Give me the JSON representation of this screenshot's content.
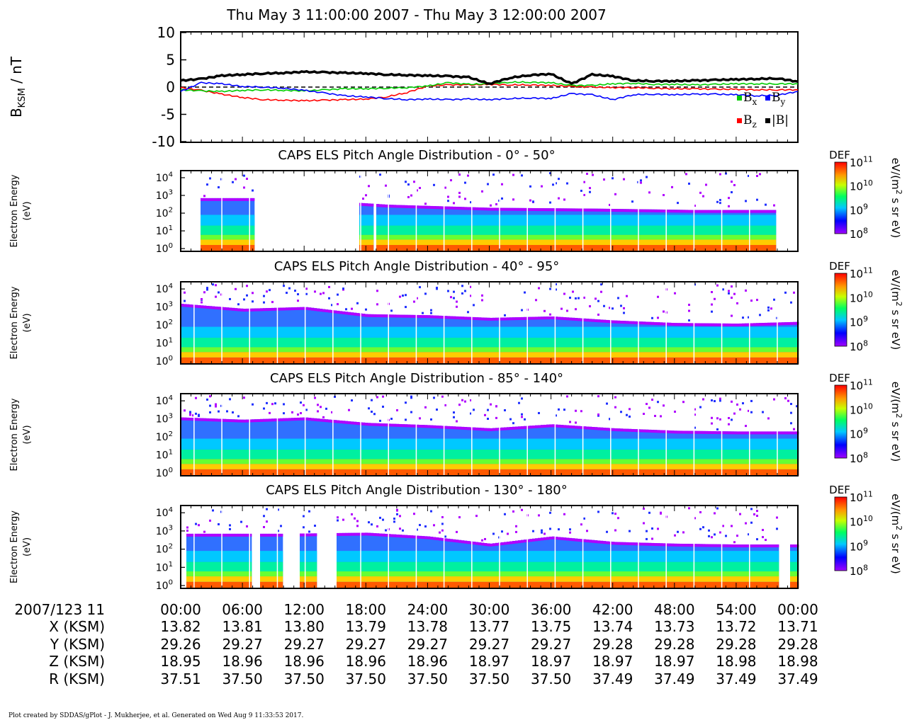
{
  "title": "Thu May 3 11:00:00 2007 - Thu May 3 12:00:00 2007",
  "mag_panel": {
    "ylabel_main": "B",
    "ylabel_sub": "KSM",
    "ylabel_unit": " / nT",
    "yticks": [
      "10",
      "5",
      "0",
      "-5",
      "-10"
    ],
    "legend": [
      {
        "key": "bx",
        "main": "B",
        "sub": "x",
        "color": "#00cc00"
      },
      {
        "key": "by",
        "main": "B",
        "sub": "y",
        "color": "#0000ff"
      },
      {
        "key": "bz",
        "main": "B",
        "sub": "z",
        "color": "#ff0000"
      },
      {
        "key": "bmag",
        "main": "|B|",
        "sub": "",
        "color": "#000000"
      }
    ]
  },
  "spectrograms": [
    {
      "title": "CAPS ELS Pitch Angle Distribution - 0° - 50°"
    },
    {
      "title": "CAPS ELS Pitch Angle Distribution - 40° - 95°"
    },
    {
      "title": "CAPS ELS Pitch Angle Distribution - 85° - 140°"
    },
    {
      "title": "CAPS ELS Pitch Angle Distribution - 130° - 180°"
    }
  ],
  "spectro_ylabel": [
    "Electron Energy",
    "(eV)"
  ],
  "spectro_yticks": [
    {
      "base": "10",
      "exp": "4"
    },
    {
      "base": "10",
      "exp": "3"
    },
    {
      "base": "10",
      "exp": "2"
    },
    {
      "base": "10",
      "exp": "1"
    },
    {
      "base": "10",
      "exp": "0"
    }
  ],
  "colorbar": {
    "label": "DEF",
    "ticks": [
      {
        "base": "10",
        "exp": "11"
      },
      {
        "base": "10",
        "exp": "10"
      },
      {
        "base": "10",
        "exp": "9"
      },
      {
        "base": "10",
        "exp": "8"
      }
    ],
    "unit_parts": [
      "eV/(m",
      "2",
      " s sr eV)"
    ]
  },
  "ephemeris": {
    "row_labels": [
      "2007/123 11",
      "X (KSM)",
      "Y (KSM)",
      "Z (KSM)",
      "R (KSM)"
    ],
    "times": [
      "00:00",
      "06:00",
      "12:00",
      "18:00",
      "24:00",
      "30:00",
      "36:00",
      "42:00",
      "48:00",
      "54:00",
      "00:00"
    ],
    "X": [
      "13.82",
      "13.81",
      "13.80",
      "13.79",
      "13.78",
      "13.77",
      "13.75",
      "13.74",
      "13.73",
      "13.72",
      "13.71"
    ],
    "Y": [
      "29.26",
      "29.27",
      "29.27",
      "29.27",
      "29.27",
      "29.27",
      "29.27",
      "29.28",
      "29.28",
      "29.28",
      "29.28"
    ],
    "Z": [
      "18.95",
      "18.96",
      "18.96",
      "18.96",
      "18.96",
      "18.97",
      "18.97",
      "18.97",
      "18.97",
      "18.98",
      "18.98"
    ],
    "R": [
      "37.51",
      "37.50",
      "37.50",
      "37.50",
      "37.50",
      "37.50",
      "37.50",
      "37.49",
      "37.49",
      "37.49",
      "37.49"
    ]
  },
  "footer": "Plot created by SDDAS/gPlot - J. Mukherjee, et al.  Generated on Wed Aug 9 11:33:53 2017.",
  "chart_data": [
    {
      "type": "line",
      "title": "",
      "xlabel": "",
      "ylabel": "BKSM / nT",
      "xlim": [
        0,
        60
      ],
      "ylim": [
        -10,
        10
      ],
      "x_units": "minutes after 2007/123 11:00",
      "series": [
        {
          "name": "Bx",
          "color": "#00cc00",
          "x": [
            0,
            2,
            4,
            6,
            8,
            10,
            12,
            14,
            16,
            18,
            20,
            22,
            24,
            26,
            28,
            30,
            32,
            34,
            36,
            38,
            40,
            42,
            44,
            46,
            48,
            50,
            52,
            54,
            56,
            58,
            60
          ],
          "y": [
            -0.5,
            -0.7,
            -0.8,
            -0.6,
            -0.5,
            -0.6,
            -0.7,
            -0.5,
            -0.3,
            -0.3,
            -0.2,
            -0.1,
            0.2,
            0.8,
            0.5,
            0.6,
            0.9,
            0.9,
            0.8,
            0.3,
            0.3,
            0.6,
            0.7,
            0.5,
            0.5,
            0.4,
            0.5,
            0.6,
            0.6,
            0.6,
            0.6
          ]
        },
        {
          "name": "By",
          "color": "#0000ff",
          "x": [
            0,
            2,
            4,
            6,
            8,
            10,
            12,
            14,
            16,
            18,
            20,
            22,
            24,
            26,
            28,
            30,
            32,
            34,
            36,
            38,
            40,
            42,
            44,
            46,
            48,
            50,
            52,
            54,
            56,
            58,
            60
          ],
          "y": [
            -0.8,
            0.8,
            0.6,
            0.1,
            0.0,
            -0.2,
            -0.6,
            -1.1,
            -1.6,
            -1.8,
            -2.1,
            -2.3,
            -2.2,
            -2.3,
            -2.2,
            -2.3,
            -2.1,
            -2.0,
            -2.1,
            -1.2,
            -1.4,
            -2.3,
            -1.4,
            -1.3,
            -1.4,
            -1.3,
            -1.3,
            -1.4,
            -1.6,
            -1.5,
            -0.8
          ]
        },
        {
          "name": "Bz",
          "color": "#ff0000",
          "x": [
            0,
            2,
            4,
            6,
            8,
            10,
            12,
            14,
            16,
            18,
            20,
            22,
            24,
            26,
            28,
            30,
            32,
            34,
            36,
            38,
            40,
            42,
            44,
            46,
            48,
            50,
            52,
            54,
            56,
            58,
            60
          ],
          "y": [
            -0.1,
            -0.6,
            -1.3,
            -1.9,
            -2.3,
            -2.4,
            -2.5,
            -2.4,
            -2.3,
            -2.2,
            -1.8,
            -1.0,
            0.2,
            0.4,
            0.4,
            0.5,
            0.4,
            0.4,
            0.3,
            0.1,
            0.0,
            -0.1,
            -0.1,
            -0.2,
            -0.3,
            -0.3,
            -0.4,
            -0.4,
            -0.5,
            -0.5,
            -0.5
          ]
        },
        {
          "name": "|B|",
          "color": "#000000",
          "x": [
            0,
            2,
            4,
            6,
            8,
            10,
            12,
            14,
            16,
            18,
            20,
            22,
            24,
            26,
            28,
            30,
            32,
            34,
            36,
            38,
            40,
            42,
            44,
            46,
            48,
            50,
            52,
            54,
            56,
            58,
            60
          ],
          "y": [
            1.2,
            1.5,
            2.1,
            2.3,
            2.5,
            2.6,
            2.8,
            2.7,
            2.6,
            2.5,
            2.3,
            2.2,
            2.1,
            2.0,
            1.8,
            0.6,
            1.7,
            2.2,
            2.4,
            0.6,
            2.3,
            2.0,
            1.2,
            1.1,
            1.1,
            1.2,
            1.3,
            1.4,
            1.5,
            1.6,
            1.0
          ]
        }
      ]
    },
    {
      "type": "heatmap",
      "title": "CAPS ELS Pitch Angle Distribution - 0° - 50°",
      "ylabel": "Electron Energy (eV)",
      "yscale": "log",
      "ylim": [
        0.7,
        25000
      ],
      "xlim": [
        0,
        60
      ],
      "colorbar": {
        "label": "DEF",
        "scale": "log",
        "range": [
          100000000.0,
          100000000000.0
        ],
        "units": "eV/(m2 s sr eV)"
      },
      "data_intervals_min": [
        [
          1.8,
          7.0
        ],
        [
          17.1,
          18.6
        ],
        [
          18.9,
          57.8
        ]
      ],
      "cutoff_energy_eV": [
        [
          0,
          700
        ],
        [
          10,
          700
        ],
        [
          20,
          300
        ],
        [
          30,
          200
        ],
        [
          40,
          180
        ],
        [
          50,
          150
        ],
        [
          57.8,
          150
        ]
      ]
    },
    {
      "type": "heatmap",
      "title": "CAPS ELS Pitch Angle Distribution - 40° - 95°",
      "ylabel": "Electron Energy (eV)",
      "yscale": "log",
      "ylim": [
        0.7,
        25000
      ],
      "xlim": [
        0,
        60
      ],
      "colorbar": {
        "label": "DEF",
        "scale": "log",
        "range": [
          100000000.0,
          100000000000.0
        ],
        "units": "eV/(m2 s sr eV)"
      },
      "data_intervals_min": [
        [
          0,
          60
        ]
      ],
      "cutoff_energy_eV": [
        [
          0,
          1500
        ],
        [
          6,
          800
        ],
        [
          12,
          1000
        ],
        [
          18,
          400
        ],
        [
          24,
          350
        ],
        [
          30,
          250
        ],
        [
          36,
          300
        ],
        [
          42,
          180
        ],
        [
          48,
          130
        ],
        [
          54,
          120
        ],
        [
          60,
          150
        ]
      ]
    },
    {
      "type": "heatmap",
      "title": "CAPS ELS Pitch Angle Distribution - 85° - 140°",
      "ylabel": "Electron Energy (eV)",
      "yscale": "log",
      "ylim": [
        0.7,
        25000
      ],
      "xlim": [
        0,
        60
      ],
      "colorbar": {
        "label": "DEF",
        "scale": "log",
        "range": [
          100000000.0,
          100000000000.0
        ],
        "units": "eV/(m2 s sr eV)"
      },
      "data_intervals_min": [
        [
          0,
          60
        ]
      ],
      "cutoff_energy_eV": [
        [
          0,
          1200
        ],
        [
          6,
          900
        ],
        [
          12,
          1200
        ],
        [
          18,
          600
        ],
        [
          24,
          450
        ],
        [
          30,
          300
        ],
        [
          36,
          500
        ],
        [
          42,
          300
        ],
        [
          48,
          220
        ],
        [
          54,
          200
        ],
        [
          60,
          200
        ]
      ]
    },
    {
      "type": "heatmap",
      "title": "CAPS ELS Pitch Angle Distribution - 130° - 180°",
      "ylabel": "Electron Energy (eV)",
      "yscale": "log",
      "ylim": [
        0.7,
        25000
      ],
      "xlim": [
        0,
        60
      ],
      "colorbar": {
        "label": "DEF",
        "scale": "log",
        "range": [
          100000000.0,
          100000000000.0
        ],
        "units": "eV/(m2 s sr eV)"
      },
      "data_intervals_min": [
        [
          0.5,
          6.8
        ],
        [
          7.6,
          9.7
        ],
        [
          11.3,
          13.0
        ],
        [
          15.0,
          57.9
        ],
        [
          59.0,
          60
        ]
      ],
      "cutoff_energy_eV": [
        [
          0,
          700
        ],
        [
          10,
          700
        ],
        [
          18,
          800
        ],
        [
          24,
          500
        ],
        [
          30,
          200
        ],
        [
          36,
          500
        ],
        [
          42,
          250
        ],
        [
          48,
          200
        ],
        [
          54,
          180
        ],
        [
          60,
          180
        ]
      ]
    }
  ]
}
